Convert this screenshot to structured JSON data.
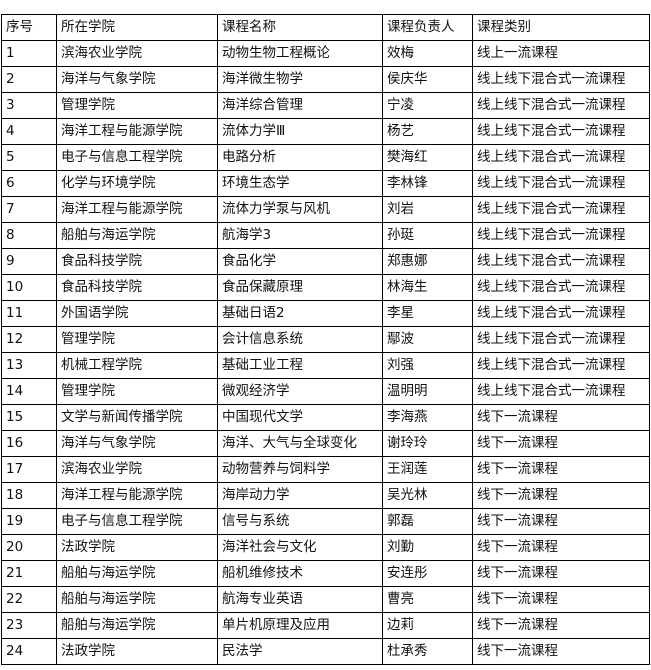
{
  "table": {
    "headers": [
      "序号",
      "所在学院",
      "课程名称",
      "课程负责人",
      "课程类别"
    ],
    "rows": [
      [
        "1",
        "滨海农业学院",
        "动物生物工程概论",
        "效梅",
        "线上一流课程"
      ],
      [
        "2",
        "海洋与气象学院",
        "海洋微生物学",
        "侯庆华",
        "线上线下混合式一流课程"
      ],
      [
        "3",
        "管理学院",
        "海洋综合管理",
        "宁凌",
        "线上线下混合式一流课程"
      ],
      [
        "4",
        "海洋工程与能源学院",
        "流体力学Ⅲ",
        "杨艺",
        "线上线下混合式一流课程"
      ],
      [
        "5",
        "电子与信息工程学院",
        "电路分析",
        "樊海红",
        "线上线下混合式一流课程"
      ],
      [
        "6",
        "化学与环境学院",
        "环境生态学",
        "李林锋",
        "线上线下混合式一流课程"
      ],
      [
        "7",
        "海洋工程与能源学院",
        "流体力学泵与风机",
        "刘岩",
        "线上线下混合式一流课程"
      ],
      [
        "8",
        "船舶与海运学院",
        "航海学3",
        "孙珽",
        "线上线下混合式一流课程"
      ],
      [
        "9",
        "食品科技学院",
        "食品化学",
        "郑惠娜",
        "线上线下混合式一流课程"
      ],
      [
        "10",
        "食品科技学院",
        "食品保藏原理",
        "林海生",
        "线上线下混合式一流课程"
      ],
      [
        "11",
        "外国语学院",
        "基础日语2",
        "李星",
        "线上线下混合式一流课程"
      ],
      [
        "12",
        "管理学院",
        "会计信息系统",
        "鄢波",
        "线上线下混合式一流课程"
      ],
      [
        "13",
        "机械工程学院",
        "基础工业工程",
        "刘强",
        "线上线下混合式一流课程"
      ],
      [
        "14",
        "管理学院",
        "微观经济学",
        "温明明",
        "线上线下混合式一流课程"
      ],
      [
        "15",
        "文学与新闻传播学院",
        "中国现代文学",
        "李海燕",
        "线下一流课程"
      ],
      [
        "16",
        "海洋与气象学院",
        "海洋、大气与全球变化",
        "谢玲玲",
        "线下一流课程"
      ],
      [
        "17",
        "滨海农业学院",
        "动物营养与饲料学",
        "王润莲",
        "线下一流课程"
      ],
      [
        "18",
        "海洋工程与能源学院",
        "海岸动力学",
        "吴光林",
        "线下一流课程"
      ],
      [
        "19",
        "电子与信息工程学院",
        "信号与系统",
        "郭磊",
        "线下一流课程"
      ],
      [
        "20",
        "法政学院",
        "海洋社会与文化",
        "刘勤",
        "线下一流课程"
      ],
      [
        "21",
        "船舶与海运学院",
        "船机维修技术",
        "安连彤",
        "线下一流课程"
      ],
      [
        "22",
        "船舶与海运学院",
        "航海专业英语",
        "曹亮",
        "线下一流课程"
      ],
      [
        "23",
        "船舶与海运学院",
        "单片机原理及应用",
        "边莉",
        "线下一流课程"
      ],
      [
        "24",
        "法政学院",
        "民法学",
        "杜承秀",
        "线下一流课程"
      ]
    ]
  }
}
